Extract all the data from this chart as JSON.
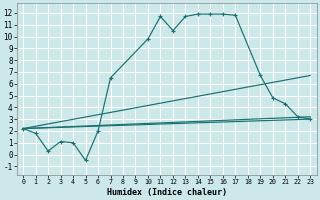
{
  "xlabel": "Humidex (Indice chaleur)",
  "bg_color": "#cce8e8",
  "grid_color": "#ffffff",
  "line_color": "#1a7070",
  "xlim": [
    -0.5,
    23.5
  ],
  "ylim": [
    -1.7,
    12.8
  ],
  "xtick_labels": [
    "0",
    "1",
    "2",
    "3",
    "4",
    "5",
    "6",
    "7",
    "8",
    "9",
    "10",
    "11",
    "12",
    "13",
    "14",
    "15",
    "16",
    "17",
    "18",
    "19",
    "20",
    "21",
    "22",
    "23"
  ],
  "ytick_values": [
    -1,
    0,
    1,
    2,
    3,
    4,
    5,
    6,
    7,
    8,
    9,
    10,
    11,
    12
  ],
  "line1_x": [
    0,
    1,
    2,
    3,
    4,
    5,
    6,
    7,
    10,
    11,
    12,
    13,
    14,
    15,
    16,
    17,
    19,
    20,
    21,
    22,
    23
  ],
  "line1_y": [
    2.2,
    1.8,
    0.3,
    1.1,
    1.0,
    -0.5,
    2.0,
    6.5,
    9.8,
    11.7,
    10.5,
    11.7,
    11.9,
    11.9,
    11.9,
    11.8,
    6.7,
    4.8,
    4.3,
    3.2,
    3.0
  ],
  "line2_x": [
    0,
    23
  ],
  "line2_y": [
    2.2,
    3.0
  ],
  "line3_x": [
    0,
    23
  ],
  "line3_y": [
    2.2,
    3.2
  ],
  "line4_x": [
    0,
    23
  ],
  "line4_y": [
    2.2,
    6.7
  ]
}
